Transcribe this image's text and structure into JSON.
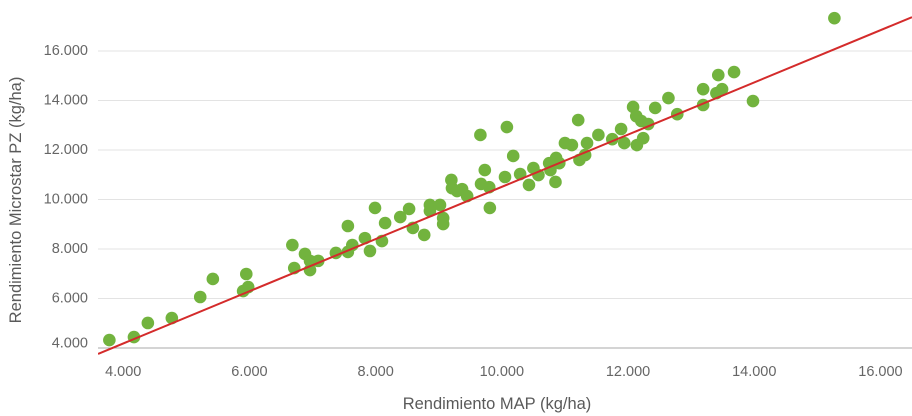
{
  "chart_data": {
    "type": "scatter",
    "xlabel": "Rendimiento MAP (kg/ha)",
    "ylabel": "Rendimiento Microstar PZ (kg/ha)",
    "xlim": [
      3600,
      16500
    ],
    "ylim": [
      3700,
      17700
    ],
    "x_ticks": [
      4000,
      6000,
      8000,
      10000,
      12000,
      14000,
      16000
    ],
    "x_tick_labels": [
      "4.000",
      "6.000",
      "8.000",
      "10.000",
      "12.000",
      "14.000",
      "16.000"
    ],
    "y_ticks": [
      4000,
      6000,
      8000,
      10000,
      12000,
      14000,
      16000
    ],
    "y_tick_labels": [
      "4.000",
      "6.000",
      "8.000",
      "10.000",
      "12.000",
      "14.000",
      "16.000"
    ],
    "grid": "horizontal",
    "series": [
      {
        "x": [
          3780,
          4170,
          4390,
          4770,
          5220,
          5420,
          5900,
          5980,
          5950,
          6680,
          6710,
          6880,
          6960,
          6960,
          7090,
          7370,
          7560,
          7560,
          7630,
          7830,
          7910,
          7990,
          8100,
          8150,
          8390,
          8530,
          8590,
          8770,
          8860,
          8860,
          9020,
          9070,
          9070,
          9200,
          9210,
          9290,
          9370,
          9450,
          9660,
          9670,
          9730,
          9800,
          9810,
          10050,
          10080,
          10180,
          10290,
          10430,
          10500,
          10580,
          10770,
          10750,
          10850,
          10860,
          10910,
          11000,
          11110,
          11210,
          11230,
          11320,
          11350,
          11530,
          11750,
          11890,
          11940,
          12080,
          12130,
          12210,
          12140,
          12240,
          12320,
          12430,
          12640,
          12780,
          13190,
          13190,
          13400,
          13430,
          13490,
          13680,
          13980,
          15270
        ],
        "y": [
          4320,
          4440,
          5010,
          5210,
          6060,
          6790,
          6300,
          6460,
          6990,
          8160,
          7230,
          7800,
          7520,
          7150,
          7520,
          7840,
          8930,
          7880,
          8160,
          8440,
          7920,
          9660,
          8320,
          9050,
          9290,
          9620,
          8850,
          8570,
          9780,
          9540,
          9780,
          9010,
          9250,
          10790,
          10460,
          10340,
          10420,
          10140,
          12610,
          10630,
          11190,
          10500,
          9660,
          10910,
          12930,
          11760,
          11030,
          10590,
          11270,
          10990,
          11190,
          11470,
          10710,
          11680,
          11470,
          12280,
          12200,
          13210,
          11600,
          11800,
          12280,
          12610,
          12440,
          12850,
          12280,
          13740,
          13370,
          13170,
          12200,
          12480,
          13050,
          13700,
          14100,
          13450,
          14460,
          13820,
          14300,
          15030,
          14460,
          15150,
          13980,
          17330
        ]
      }
    ],
    "trendline": {
      "x": [
        3600,
        16500
      ],
      "y": [
        3760,
        17370
      ]
    },
    "colors": {
      "points": "#72b33e",
      "trendline": "#d42b2b",
      "grid": "#e3e3e3",
      "axis": "#a8a8a8"
    }
  }
}
